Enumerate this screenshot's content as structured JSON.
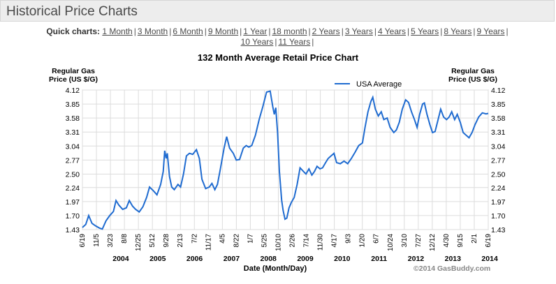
{
  "header": {
    "title": "Historical Price Charts"
  },
  "quick_charts": {
    "label": "Quick charts:",
    "row1": [
      "1 Month",
      "3 Month",
      "6 Month",
      "9 Month",
      "1 Year",
      "18 month",
      "2 Years",
      "3 Years",
      "4 Years",
      "5 Years",
      "8 Years",
      "9 Years"
    ],
    "row2": [
      "10 Years",
      "11 Years"
    ]
  },
  "chart_data": {
    "type": "line",
    "title": "132 Month Average Retail Price Chart",
    "ylabel_left": "Regular Gas Price (US $/G)",
    "ylabel_right": "Regular Gas Price (US $/G)",
    "xlabel": "Date (Month/Day)",
    "copyright": "©2014 GasBuddy.com",
    "ylim": [
      1.43,
      4.12
    ],
    "y_ticks": [
      "4.12",
      "3.85",
      "3.58",
      "3.31",
      "3.04",
      "2.77",
      "2.50",
      "2.24",
      "1.97",
      "1.70",
      "1.43"
    ],
    "x_ticks": [
      "6/19",
      "11/5",
      "3/23",
      "8/8",
      "12/25",
      "5/12",
      "9/28",
      "2/13",
      "7/2",
      "11/17",
      "4/5",
      "8/22",
      "1/7",
      "5/25",
      "10/10",
      "2/26",
      "7/14",
      "11/30",
      "4/17",
      "9/3",
      "1/20",
      "6/7",
      "10/24",
      "3/10",
      "7/27",
      "12/12",
      "4/30",
      "9/15",
      "2/1",
      "6/19"
    ],
    "year_labels": [
      "2004",
      "2005",
      "2006",
      "2007",
      "2008",
      "2009",
      "2010",
      "2011",
      "2012",
      "2013",
      "2014"
    ],
    "x_range": [
      2003.46,
      2014.46
    ],
    "grid": true,
    "legend": "top",
    "series": [
      {
        "name": "USA Average",
        "color": "#1f6bd0",
        "points": [
          [
            2003.46,
            1.47
          ],
          [
            2003.55,
            1.53
          ],
          [
            2003.63,
            1.7
          ],
          [
            2003.72,
            1.55
          ],
          [
            2003.82,
            1.5
          ],
          [
            2003.92,
            1.46
          ],
          [
            2004.0,
            1.44
          ],
          [
            2004.1,
            1.6
          ],
          [
            2004.2,
            1.7
          ],
          [
            2004.3,
            1.78
          ],
          [
            2004.37,
            1.99
          ],
          [
            2004.45,
            1.9
          ],
          [
            2004.55,
            1.82
          ],
          [
            2004.65,
            1.85
          ],
          [
            2004.73,
            1.99
          ],
          [
            2004.82,
            1.88
          ],
          [
            2004.9,
            1.82
          ],
          [
            2005.0,
            1.77
          ],
          [
            2005.1,
            1.87
          ],
          [
            2005.2,
            2.05
          ],
          [
            2005.28,
            2.25
          ],
          [
            2005.38,
            2.18
          ],
          [
            2005.48,
            2.1
          ],
          [
            2005.58,
            2.3
          ],
          [
            2005.65,
            2.55
          ],
          [
            2005.69,
            2.95
          ],
          [
            2005.73,
            2.8
          ],
          [
            2005.76,
            2.9
          ],
          [
            2005.82,
            2.45
          ],
          [
            2005.88,
            2.25
          ],
          [
            2005.95,
            2.2
          ],
          [
            2006.05,
            2.3
          ],
          [
            2006.12,
            2.25
          ],
          [
            2006.2,
            2.5
          ],
          [
            2006.28,
            2.85
          ],
          [
            2006.36,
            2.9
          ],
          [
            2006.45,
            2.88
          ],
          [
            2006.55,
            2.97
          ],
          [
            2006.63,
            2.8
          ],
          [
            2006.7,
            2.4
          ],
          [
            2006.8,
            2.22
          ],
          [
            2006.9,
            2.25
          ],
          [
            2006.97,
            2.32
          ],
          [
            2007.05,
            2.2
          ],
          [
            2007.12,
            2.3
          ],
          [
            2007.2,
            2.6
          ],
          [
            2007.3,
            3.0
          ],
          [
            2007.37,
            3.22
          ],
          [
            2007.45,
            3.0
          ],
          [
            2007.55,
            2.9
          ],
          [
            2007.63,
            2.77
          ],
          [
            2007.72,
            2.78
          ],
          [
            2007.82,
            3.0
          ],
          [
            2007.9,
            3.05
          ],
          [
            2007.97,
            3.02
          ],
          [
            2008.05,
            3.05
          ],
          [
            2008.15,
            3.25
          ],
          [
            2008.25,
            3.55
          ],
          [
            2008.35,
            3.8
          ],
          [
            2008.45,
            4.08
          ],
          [
            2008.55,
            4.1
          ],
          [
            2008.62,
            3.8
          ],
          [
            2008.66,
            3.65
          ],
          [
            2008.7,
            3.78
          ],
          [
            2008.75,
            3.3
          ],
          [
            2008.8,
            2.55
          ],
          [
            2008.86,
            2.0
          ],
          [
            2008.9,
            1.8
          ],
          [
            2008.95,
            1.63
          ],
          [
            2009.0,
            1.65
          ],
          [
            2009.06,
            1.85
          ],
          [
            2009.12,
            1.95
          ],
          [
            2009.2,
            2.05
          ],
          [
            2009.28,
            2.3
          ],
          [
            2009.36,
            2.62
          ],
          [
            2009.45,
            2.55
          ],
          [
            2009.52,
            2.5
          ],
          [
            2009.6,
            2.6
          ],
          [
            2009.68,
            2.48
          ],
          [
            2009.75,
            2.55
          ],
          [
            2009.82,
            2.65
          ],
          [
            2009.9,
            2.6
          ],
          [
            2009.97,
            2.62
          ],
          [
            2010.05,
            2.72
          ],
          [
            2010.12,
            2.8
          ],
          [
            2010.2,
            2.85
          ],
          [
            2010.28,
            2.9
          ],
          [
            2010.35,
            2.72
          ],
          [
            2010.45,
            2.7
          ],
          [
            2010.55,
            2.75
          ],
          [
            2010.65,
            2.7
          ],
          [
            2010.75,
            2.8
          ],
          [
            2010.85,
            2.92
          ],
          [
            2010.95,
            3.05
          ],
          [
            2011.05,
            3.1
          ],
          [
            2011.12,
            3.4
          ],
          [
            2011.2,
            3.7
          ],
          [
            2011.28,
            3.9
          ],
          [
            2011.33,
            3.98
          ],
          [
            2011.4,
            3.75
          ],
          [
            2011.48,
            3.62
          ],
          [
            2011.56,
            3.7
          ],
          [
            2011.63,
            3.55
          ],
          [
            2011.72,
            3.58
          ],
          [
            2011.8,
            3.4
          ],
          [
            2011.9,
            3.3
          ],
          [
            2011.97,
            3.35
          ],
          [
            2012.05,
            3.5
          ],
          [
            2012.13,
            3.75
          ],
          [
            2012.22,
            3.93
          ],
          [
            2012.3,
            3.88
          ],
          [
            2012.38,
            3.7
          ],
          [
            2012.46,
            3.55
          ],
          [
            2012.53,
            3.4
          ],
          [
            2012.6,
            3.65
          ],
          [
            2012.68,
            3.85
          ],
          [
            2012.73,
            3.87
          ],
          [
            2012.8,
            3.65
          ],
          [
            2012.88,
            3.45
          ],
          [
            2012.95,
            3.3
          ],
          [
            2013.02,
            3.32
          ],
          [
            2013.1,
            3.55
          ],
          [
            2013.17,
            3.75
          ],
          [
            2013.25,
            3.6
          ],
          [
            2013.33,
            3.55
          ],
          [
            2013.4,
            3.6
          ],
          [
            2013.47,
            3.7
          ],
          [
            2013.55,
            3.55
          ],
          [
            2013.62,
            3.65
          ],
          [
            2013.7,
            3.5
          ],
          [
            2013.78,
            3.3
          ],
          [
            2013.86,
            3.25
          ],
          [
            2013.94,
            3.2
          ],
          [
            2014.02,
            3.3
          ],
          [
            2014.1,
            3.45
          ],
          [
            2014.2,
            3.6
          ],
          [
            2014.3,
            3.68
          ],
          [
            2014.4,
            3.66
          ],
          [
            2014.46,
            3.67
          ]
        ]
      }
    ]
  }
}
